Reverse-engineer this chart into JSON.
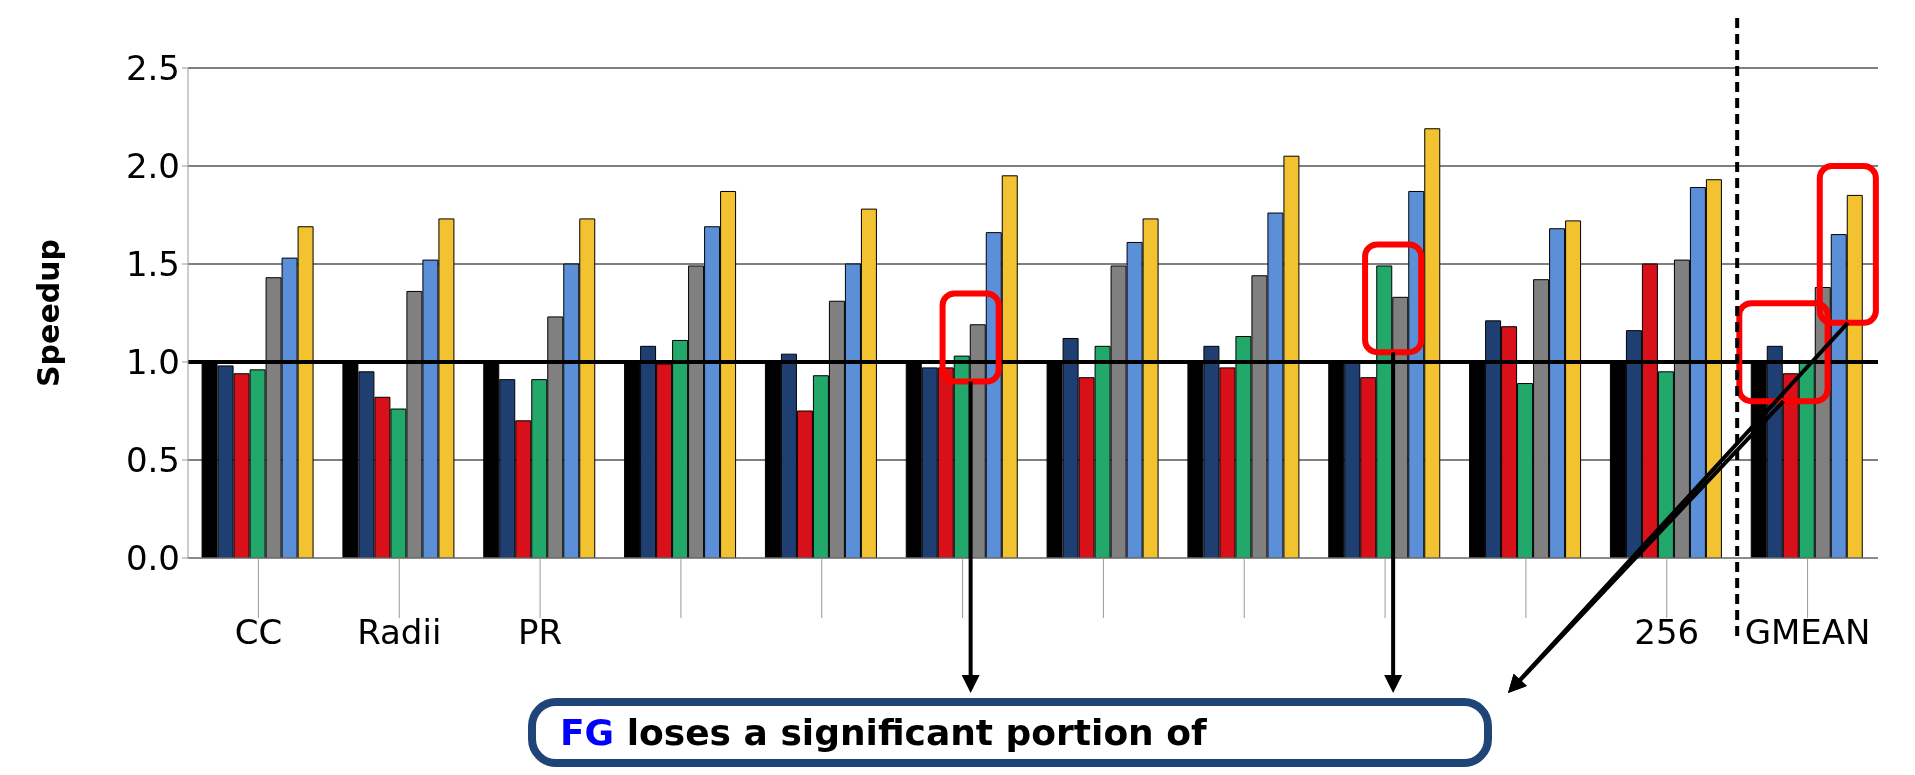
{
  "chart_data": {
    "type": "bar",
    "ylabel": "Speedup",
    "categories": [
      "CC",
      "Radii",
      "PR",
      null,
      null,
      null,
      null,
      null,
      null,
      null,
      "256",
      "GMEAN"
    ],
    "series": [
      {
        "color": "#000000",
        "values": [
          1.0,
          1.0,
          1.0,
          1.0,
          1.0,
          1.0,
          1.0,
          1.0,
          1.0,
          1.0,
          1.0,
          1.0
        ]
      },
      {
        "color": "#1f3f73",
        "values": [
          0.98,
          0.95,
          0.91,
          1.08,
          1.04,
          0.97,
          1.12,
          1.08,
          1.0,
          1.21,
          1.16,
          1.08
        ]
      },
      {
        "color": "#d7101a",
        "values": [
          0.94,
          0.82,
          0.7,
          0.99,
          0.75,
          0.97,
          0.92,
          0.97,
          0.92,
          1.18,
          1.5,
          0.94
        ]
      },
      {
        "color": "#23a86b",
        "values": [
          0.96,
          0.76,
          0.91,
          1.11,
          0.93,
          1.03,
          1.08,
          1.13,
          1.49,
          0.89,
          0.95,
          1.0
        ]
      },
      {
        "color": "#808080",
        "values": [
          1.43,
          1.36,
          1.23,
          1.49,
          1.31,
          1.19,
          1.49,
          1.44,
          1.33,
          1.42,
          1.52,
          1.38
        ]
      },
      {
        "color": "#5b8fd8",
        "values": [
          1.53,
          1.52,
          1.5,
          1.69,
          1.5,
          1.66,
          1.61,
          1.76,
          1.87,
          1.68,
          1.89,
          1.65
        ]
      },
      {
        "color": "#f2c230",
        "values": [
          1.69,
          1.73,
          1.73,
          1.87,
          1.78,
          1.95,
          1.73,
          2.05,
          2.19,
          1.72,
          1.93,
          1.85
        ]
      }
    ],
    "ylim": [
      0,
      2.5
    ],
    "yticks": [
      {
        "value": 0,
        "label": "0.0"
      },
      {
        "value": 0.5,
        "label": "0.5"
      },
      {
        "value": 1,
        "label": "1.0"
      },
      {
        "value": 1.5,
        "label": "1.5"
      },
      {
        "value": 2,
        "label": "2.0"
      },
      {
        "value": 2.5,
        "label": "2.5"
      }
    ],
    "grid": "y",
    "ref_lines": [
      {
        "axis": "y",
        "value": 1,
        "color": "#000000",
        "line_style": "solid"
      },
      {
        "axis": "x",
        "value": "GMEAN",
        "color": "#000000",
        "line_style": "dashed"
      }
    ],
    "annotations": [
      "FG loses a significant portion of"
    ]
  }
}
